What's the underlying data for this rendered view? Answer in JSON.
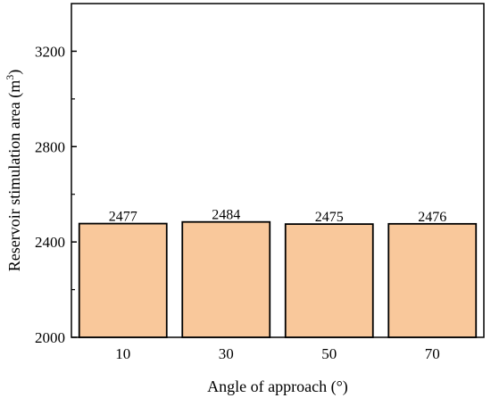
{
  "chart_data": {
    "type": "bar",
    "categories": [
      "10",
      "30",
      "50",
      "70"
    ],
    "values": [
      2477,
      2484,
      2475,
      2476
    ],
    "data_labels": [
      "2477",
      "2484",
      "2475",
      "2476"
    ],
    "title": "",
    "xlabel": "Angle of approach (°)",
    "ylabel_main": "Reservoir stimulation area (m",
    "ylabel_sup": "3",
    "ylabel_close": ")",
    "ylim": [
      2000,
      3400
    ],
    "yticks": [
      2000,
      2400,
      2800,
      3200
    ],
    "ytick_labels": [
      "2000",
      "2400",
      "2800",
      "3200"
    ],
    "grid": false,
    "legend": "none",
    "bar_color": "#f9c89b",
    "bar_edge_color": "#000000"
  }
}
